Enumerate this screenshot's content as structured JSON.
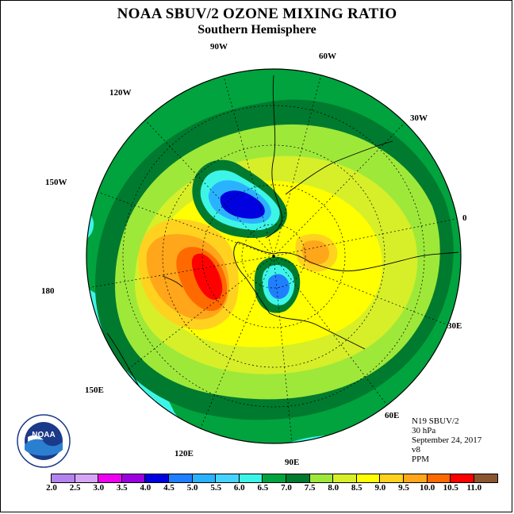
{
  "title": "NOAA SBUV/2 OZONE MIXING RATIO",
  "subtitle": "Southern Hemisphere",
  "longitude_labels": [
    "90W",
    "60W",
    "120W",
    "30W",
    "150W",
    "0",
    "180",
    "30E",
    "150E",
    "60E",
    "120E",
    "90E"
  ],
  "info": {
    "satellite": "N19 SBUV/2",
    "level": "30 hPa",
    "date": "September 24, 2017",
    "version": "v8",
    "units": "PPM"
  },
  "colorbar": {
    "labels": [
      "2.0",
      "2.5",
      "3.0",
      "3.5",
      "4.0",
      "4.5",
      "5.0",
      "5.5",
      "6.0",
      "6.5",
      "7.0",
      "7.5",
      "8.0",
      "8.5",
      "9.0",
      "9.5",
      "10.0",
      "10.5",
      "11.0"
    ],
    "colors": [
      "#b383f0",
      "#d6a6f5",
      "#f000f0",
      "#9b00e0",
      "#0000e0",
      "#1f7fff",
      "#2ab2ff",
      "#44d4ff",
      "#3df5e6",
      "#00a33d",
      "#007a2e",
      "#9ee83a",
      "#d6ef29",
      "#ffff00",
      "#ffd21f",
      "#ffa61a",
      "#ff6a00",
      "#ff0000",
      "#8b5530"
    ]
  },
  "logo_text": "NOAA"
}
